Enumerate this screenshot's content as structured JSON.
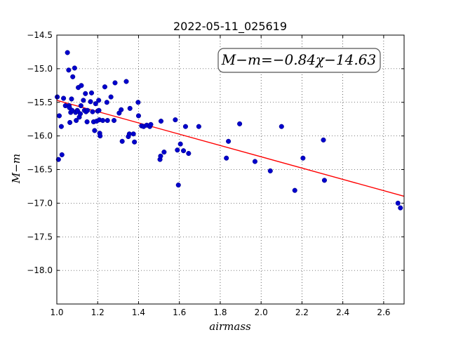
{
  "chart_data": {
    "type": "scatter",
    "title": "2022-05-11_025619",
    "xlabel": "airmass",
    "ylabel": "M−m",
    "xlim": [
      1.0,
      2.7
    ],
    "ylim": [
      -14.5,
      -18.5
    ],
    "y_inverted": true,
    "grid": true,
    "x_ticks": [
      "1.0",
      "1.2",
      "1.4",
      "1.6",
      "1.8",
      "2.0",
      "2.2",
      "2.4",
      "2.6"
    ],
    "x_tick_values": [
      1.0,
      1.2,
      1.4,
      1.6,
      1.8,
      2.0,
      2.2,
      2.4,
      2.6
    ],
    "y_ticks": [
      "−14.5",
      "−15.0",
      "−15.5",
      "−16.0",
      "−16.5",
      "−17.0",
      "−17.5",
      "−18.0"
    ],
    "y_tick_values": [
      -14.5,
      -15.0,
      -15.5,
      -16.0,
      -16.5,
      -17.0,
      -17.5,
      -18.0
    ],
    "annotation": "M−m=−0.84χ−14.63",
    "fit": {
      "slope": -0.84,
      "intercept": -14.63,
      "color": "#ff0000"
    },
    "point_color": "#0000cc",
    "points": [
      {
        "x": 1.002,
        "y": -15.42
      },
      {
        "x": 1.008,
        "y": -16.35
      },
      {
        "x": 1.012,
        "y": -15.7
      },
      {
        "x": 1.022,
        "y": -15.86
      },
      {
        "x": 1.025,
        "y": -16.28
      },
      {
        "x": 1.033,
        "y": -15.44
      },
      {
        "x": 1.042,
        "y": -15.55
      },
      {
        "x": 1.052,
        "y": -14.76
      },
      {
        "x": 1.058,
        "y": -15.02
      },
      {
        "x": 1.06,
        "y": -15.55
      },
      {
        "x": 1.062,
        "y": -15.58
      },
      {
        "x": 1.064,
        "y": -15.8
      },
      {
        "x": 1.068,
        "y": -15.65
      },
      {
        "x": 1.072,
        "y": -15.45
      },
      {
        "x": 1.075,
        "y": -15.62
      },
      {
        "x": 1.078,
        "y": -15.12
      },
      {
        "x": 1.087,
        "y": -14.99
      },
      {
        "x": 1.092,
        "y": -15.65
      },
      {
        "x": 1.095,
        "y": -15.77
      },
      {
        "x": 1.1,
        "y": -15.62
      },
      {
        "x": 1.102,
        "y": -15.63
      },
      {
        "x": 1.105,
        "y": -15.28
      },
      {
        "x": 1.11,
        "y": -15.72
      },
      {
        "x": 1.115,
        "y": -15.67
      },
      {
        "x": 1.118,
        "y": -15.55
      },
      {
        "x": 1.12,
        "y": -15.25
      },
      {
        "x": 1.13,
        "y": -15.47
      },
      {
        "x": 1.135,
        "y": -15.62
      },
      {
        "x": 1.14,
        "y": -15.37
      },
      {
        "x": 1.143,
        "y": -15.64
      },
      {
        "x": 1.148,
        "y": -15.79
      },
      {
        "x": 1.15,
        "y": -15.62
      },
      {
        "x": 1.165,
        "y": -15.49
      },
      {
        "x": 1.17,
        "y": -15.36
      },
      {
        "x": 1.175,
        "y": -15.64
      },
      {
        "x": 1.18,
        "y": -15.79
      },
      {
        "x": 1.185,
        "y": -15.92
      },
      {
        "x": 1.19,
        "y": -15.52
      },
      {
        "x": 1.195,
        "y": -15.78
      },
      {
        "x": 1.2,
        "y": -15.63
      },
      {
        "x": 1.205,
        "y": -15.47
      },
      {
        "x": 1.206,
        "y": -15.62
      },
      {
        "x": 1.208,
        "y": -15.76
      },
      {
        "x": 1.21,
        "y": -15.96
      },
      {
        "x": 1.212,
        "y": -16.0
      },
      {
        "x": 1.225,
        "y": -15.77
      },
      {
        "x": 1.235,
        "y": -15.27
      },
      {
        "x": 1.245,
        "y": -15.5
      },
      {
        "x": 1.248,
        "y": -15.77
      },
      {
        "x": 1.265,
        "y": -15.42
      },
      {
        "x": 1.28,
        "y": -15.77
      },
      {
        "x": 1.285,
        "y": -15.21
      },
      {
        "x": 1.305,
        "y": -15.66
      },
      {
        "x": 1.315,
        "y": -15.61
      },
      {
        "x": 1.32,
        "y": -16.08
      },
      {
        "x": 1.34,
        "y": -15.19
      },
      {
        "x": 1.35,
        "y": -16.01
      },
      {
        "x": 1.355,
        "y": -15.97
      },
      {
        "x": 1.358,
        "y": -15.59
      },
      {
        "x": 1.375,
        "y": -15.97
      },
      {
        "x": 1.38,
        "y": -16.09
      },
      {
        "x": 1.398,
        "y": -15.5
      },
      {
        "x": 1.4,
        "y": -15.7
      },
      {
        "x": 1.415,
        "y": -15.85
      },
      {
        "x": 1.425,
        "y": -15.86
      },
      {
        "x": 1.44,
        "y": -15.84
      },
      {
        "x": 1.455,
        "y": -15.86
      },
      {
        "x": 1.46,
        "y": -15.83
      },
      {
        "x": 1.505,
        "y": -16.35
      },
      {
        "x": 1.508,
        "y": -16.3
      },
      {
        "x": 1.51,
        "y": -15.78
      },
      {
        "x": 1.525,
        "y": -16.24
      },
      {
        "x": 1.58,
        "y": -15.76
      },
      {
        "x": 1.59,
        "y": -16.21
      },
      {
        "x": 1.595,
        "y": -16.73
      },
      {
        "x": 1.605,
        "y": -16.12
      },
      {
        "x": 1.62,
        "y": -16.22
      },
      {
        "x": 1.63,
        "y": -15.86
      },
      {
        "x": 1.645,
        "y": -16.26
      },
      {
        "x": 1.695,
        "y": -15.86
      },
      {
        "x": 1.83,
        "y": -16.33
      },
      {
        "x": 1.84,
        "y": -16.08
      },
      {
        "x": 1.895,
        "y": -15.82
      },
      {
        "x": 1.97,
        "y": -16.38
      },
      {
        "x": 2.045,
        "y": -16.52
      },
      {
        "x": 2.1,
        "y": -15.86
      },
      {
        "x": 2.165,
        "y": -16.81
      },
      {
        "x": 2.205,
        "y": -16.33
      },
      {
        "x": 2.305,
        "y": -16.06
      },
      {
        "x": 2.31,
        "y": -16.66
      },
      {
        "x": 2.67,
        "y": -17.0
      },
      {
        "x": 2.682,
        "y": -17.07
      }
    ]
  }
}
